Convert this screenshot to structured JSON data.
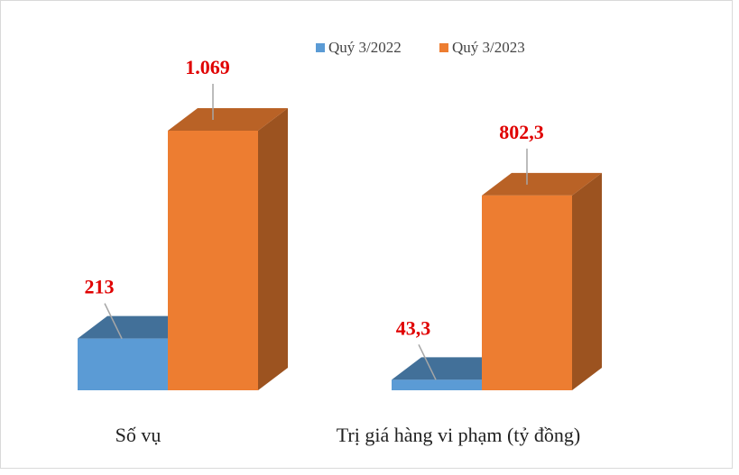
{
  "chart_data": {
    "type": "bar3d",
    "categories": [
      "Số vụ",
      "Trị giá hàng vi phạm (tỷ đồng)"
    ],
    "series": [
      {
        "name": "Quý 3/2022",
        "color": "#5b9bd5",
        "values": [
          213,
          43.3
        ],
        "value_labels": [
          "213",
          "43,3"
        ]
      },
      {
        "name": "Quý 3/2023",
        "color": "#ed7d31",
        "values": [
          1069,
          802.3
        ],
        "value_labels": [
          "1.069",
          "802,3"
        ]
      }
    ],
    "legend": "top"
  }
}
